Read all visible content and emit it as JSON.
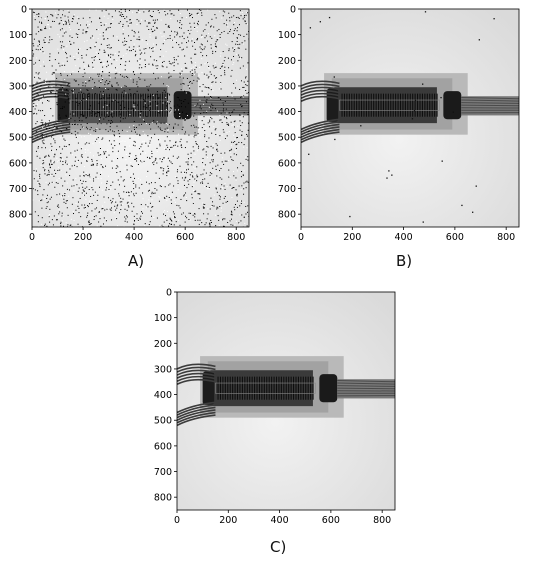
{
  "panels": [
    {
      "id": "A",
      "caption": "A)",
      "variant": "noisy",
      "x_ticks": [
        "0",
        "200",
        "400",
        "600",
        "800"
      ],
      "y_ticks": [
        "0",
        "100",
        "200",
        "300",
        "400",
        "500",
        "600",
        "700",
        "800"
      ]
    },
    {
      "id": "B",
      "caption": "B)",
      "variant": "sparse-noise",
      "x_ticks": [
        "0",
        "200",
        "400",
        "600",
        "800"
      ],
      "y_ticks": [
        "0",
        "100",
        "200",
        "300",
        "400",
        "500",
        "600",
        "700",
        "800"
      ]
    },
    {
      "id": "C",
      "caption": "C)",
      "variant": "clean",
      "x_ticks": [
        "0",
        "200",
        "400",
        "600",
        "800"
      ],
      "y_ticks": [
        "0",
        "100",
        "200",
        "300",
        "400",
        "500",
        "600",
        "700",
        "800"
      ]
    }
  ]
}
